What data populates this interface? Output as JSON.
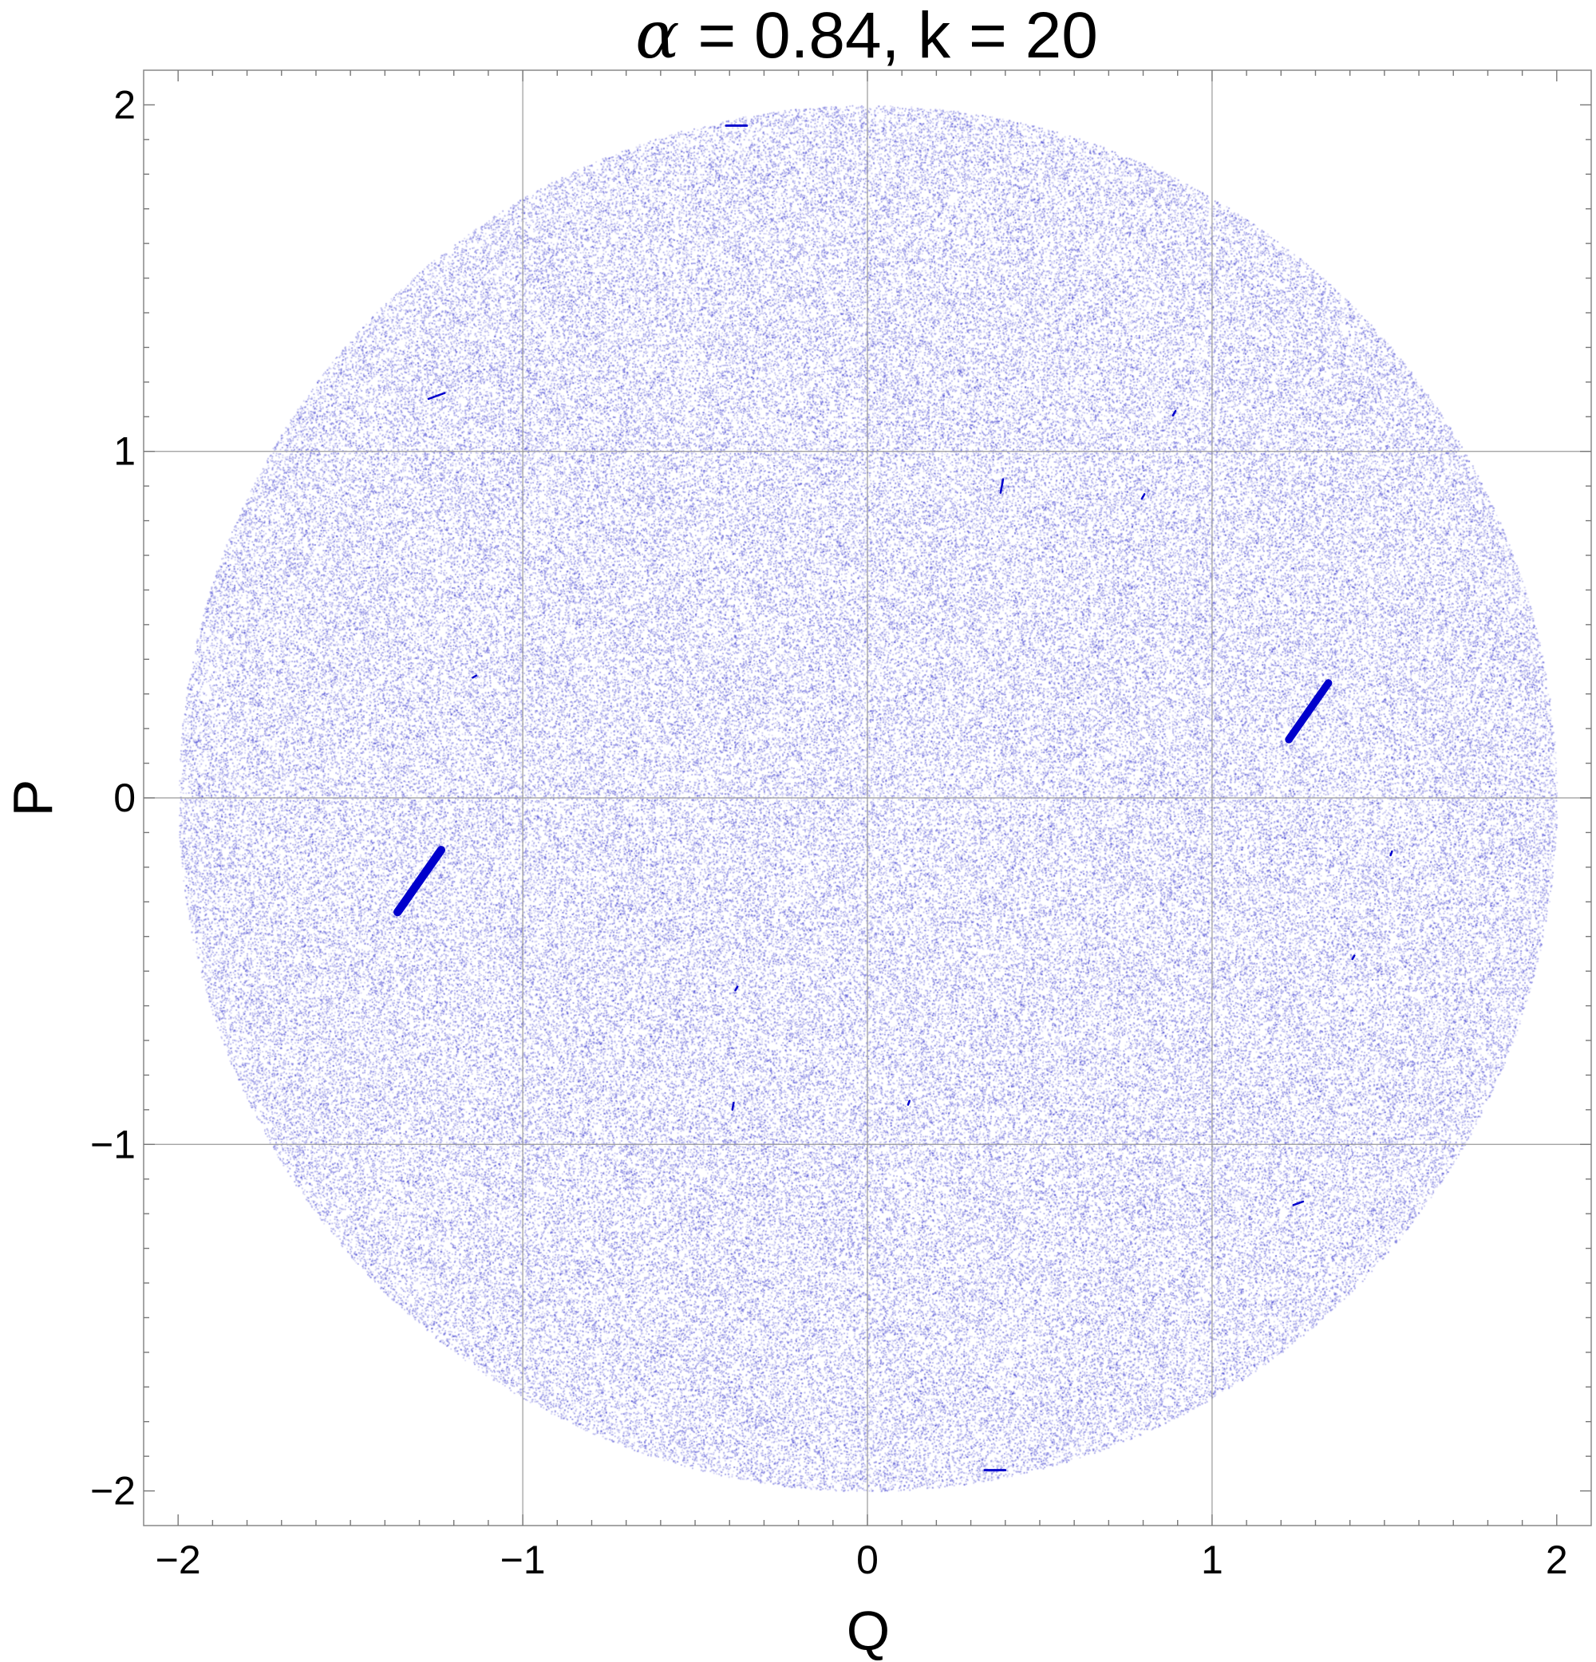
{
  "chart_data": {
    "type": "scatter",
    "title": {
      "symbol": "α",
      "rest": " = 0.84, k = 20"
    },
    "xlabel": "Q",
    "ylabel": "P",
    "xlim": [
      -2.1,
      2.1
    ],
    "ylim": [
      -2.1,
      2.1
    ],
    "xticks": [
      {
        "value": -2,
        "label": "−2"
      },
      {
        "value": -1,
        "label": "−1"
      },
      {
        "value": 0,
        "label": "0"
      },
      {
        "value": 1,
        "label": "1"
      },
      {
        "value": 2,
        "label": "2"
      }
    ],
    "yticks": [
      {
        "value": -2,
        "label": "−2"
      },
      {
        "value": -1,
        "label": "−1"
      },
      {
        "value": 0,
        "label": "0"
      },
      {
        "value": 1,
        "label": "1"
      },
      {
        "value": 2,
        "label": "2"
      }
    ],
    "gridlines": [
      -1,
      0,
      1
    ],
    "grid": true,
    "legend": "none",
    "region": {
      "shape": "disk",
      "center": [
        0,
        0
      ],
      "radius": 2.0
    },
    "colors": {
      "scatter": "#3333cc",
      "islands": "#0000cc",
      "grid": "#9a9a9a",
      "frame": "#888888"
    },
    "islands": [
      {
        "q": 1.28,
        "p": 0.25,
        "length": 0.2,
        "angle_deg": 55
      },
      {
        "q": -1.3,
        "p": -0.24,
        "length": 0.22,
        "angle_deg": 55
      },
      {
        "q": -1.25,
        "p": 1.16,
        "length": 0.05,
        "angle_deg": 20
      },
      {
        "q": -0.38,
        "p": 1.94,
        "length": 0.06,
        "angle_deg": 0
      },
      {
        "q": 0.37,
        "p": -1.94,
        "length": 0.06,
        "angle_deg": 0
      },
      {
        "q": 1.25,
        "p": -1.17,
        "length": 0.03,
        "angle_deg": 20
      },
      {
        "q": 0.39,
        "p": 0.9,
        "length": 0.04,
        "angle_deg": 80
      },
      {
        "q": 0.8,
        "p": 0.87,
        "length": 0.015,
        "angle_deg": 60
      },
      {
        "q": 0.89,
        "p": 1.11,
        "length": 0.015,
        "angle_deg": 60
      },
      {
        "q": -1.14,
        "p": 0.35,
        "length": 0.012,
        "angle_deg": 30
      },
      {
        "q": -0.39,
        "p": -0.89,
        "length": 0.02,
        "angle_deg": 80
      },
      {
        "q": 0.12,
        "p": -0.88,
        "length": 0.012,
        "angle_deg": 70
      },
      {
        "q": -0.38,
        "p": -0.55,
        "length": 0.012,
        "angle_deg": 60
      },
      {
        "q": 1.41,
        "p": -0.46,
        "length": 0.012,
        "angle_deg": 60
      },
      {
        "q": 1.52,
        "p": -0.16,
        "length": 0.012,
        "angle_deg": 70
      }
    ]
  }
}
